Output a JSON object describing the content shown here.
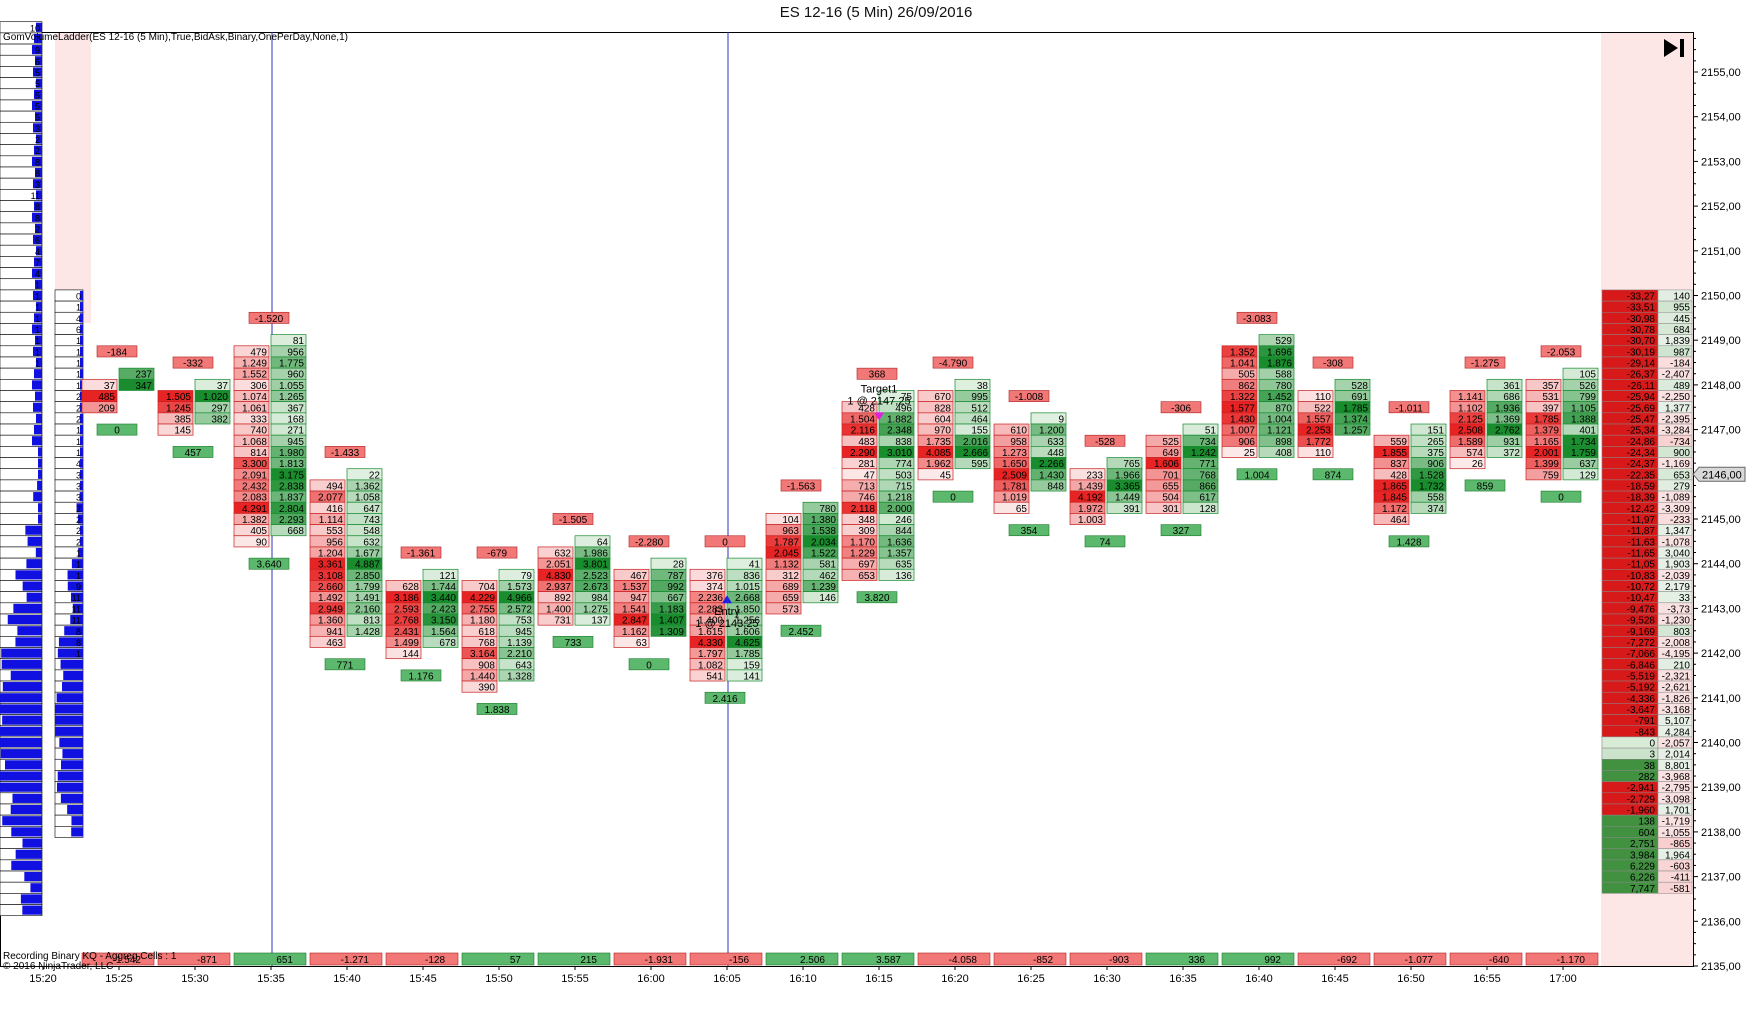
{
  "title": "ES 12-16 (5 Min)  26/09/2016",
  "indicator_label": "GomVolumeLadder(ES 12-16 (5 Min),True,BidAsk,Binary,OnePerDay,None,1)",
  "status_label": "Recording Binary KQ - Aggreg Cells : 1",
  "copyright_label": "© 2016 NinjaTrader, LLC",
  "end_icon": "skip-to-end-icon",
  "current_price_label": "2146,00",
  "colors": {
    "bid": "#e8202a",
    "ask": "#1a9a3a",
    "poc": "#f0a020",
    "highlight": "#38c8e8",
    "profile": "#1010e0",
    "cursor": "#3030c0"
  },
  "chart_data": {
    "type": "footprint",
    "title": "ES 12-16 (5 Min)  26/09/2016",
    "ylim": [
      2135.5,
      2156.5
    ],
    "y_ticks": [
      "2155,00",
      "2154,00",
      "2153,00",
      "2152,00",
      "2151,00",
      "2150,00",
      "2149,00",
      "2148,00",
      "2147,00",
      "2146,00",
      "2145,00",
      "2144,00",
      "2143,00",
      "2142,00",
      "2141,00",
      "2140,00",
      "2139,00",
      "2138,00",
      "2137,00",
      "2136,00",
      "2135,00"
    ],
    "x_ticks": [
      "15:20",
      "15:25",
      "15:30",
      "15:35",
      "15:40",
      "15:45",
      "15:50",
      "15:55",
      "16:00",
      "16:05",
      "16:10",
      "16:15",
      "16:20",
      "16:25",
      "16:30",
      "16:35",
      "16:40",
      "16:45",
      "16:50",
      "16:55",
      "17:00"
    ],
    "bars": [
      {
        "time": "15:25",
        "top": 2148.25,
        "bid": [
          "37",
          "485",
          "209"
        ],
        "ask": [
          "237",
          "347"
        ],
        "high_delta": "-184",
        "low_delta": "0",
        "bottom_delta": "-1.542"
      },
      {
        "time": "15:30",
        "top": 2148.0,
        "bid": [
          "1.505",
          "1.245",
          "385",
          "145"
        ],
        "ask": [
          "37",
          "1.020",
          "297",
          "382"
        ],
        "high_delta": "-332",
        "low_delta": "457",
        "bottom_delta": "-871"
      },
      {
        "time": "15:35",
        "top": 2149.0,
        "bid": [
          "479",
          "1.249",
          "1.552",
          "306",
          "1.074",
          "1.061",
          "333",
          "740",
          "1.068",
          "814",
          "3.300",
          "2.091",
          "2.432",
          "2.083",
          "4.291",
          "1.382",
          "405",
          "90"
        ],
        "ask": [
          "81",
          "956",
          "1.775",
          "960",
          "1.055",
          "1.265",
          "367",
          "168",
          "271",
          "945",
          "1.980",
          "1.813",
          "3.175",
          "2.838",
          "1.837",
          "2.804",
          "2.293",
          "668"
        ],
        "high_delta": "-1.520",
        "low_delta": "3.640",
        "bottom_delta": "651"
      },
      {
        "time": "15:40",
        "top": 2146.0,
        "bid": [
          "494",
          "2.077",
          "416",
          "1.114",
          "553",
          "956",
          "1.204",
          "3.361",
          "3.108",
          "2.660",
          "1.492",
          "2.949",
          "1.360",
          "941",
          "463"
        ],
        "ask": [
          "22",
          "1.362",
          "1.058",
          "647",
          "743",
          "548",
          "632",
          "1.677",
          "4.887",
          "2.850",
          "1.799",
          "1.491",
          "2.160",
          "813",
          "1.428"
        ],
        "high_delta": "-1.433",
        "low_delta": "771",
        "bottom_delta": "-1.271"
      },
      {
        "time": "15:45",
        "top": 2143.75,
        "bid": [
          "628",
          "3.186",
          "2.593",
          "2.768",
          "2.431",
          "1.499",
          "144"
        ],
        "ask": [
          "121",
          "1.744",
          "3.440",
          "2.423",
          "3.150",
          "1.564",
          "678"
        ],
        "high_delta": "-1.361",
        "low_delta": "1.176",
        "bottom_delta": "-128"
      },
      {
        "time": "15:50",
        "top": 2143.75,
        "bid": [
          "704",
          "4.229",
          "2.755",
          "1.180",
          "618",
          "768",
          "3.164",
          "908",
          "1.440",
          "390"
        ],
        "ask": [
          "79",
          "1.573",
          "4.966",
          "2.572",
          "753",
          "945",
          "1.139",
          "2.210",
          "643",
          "1.328"
        ],
        "high_delta": "-679",
        "low_delta": "1.838",
        "bottom_delta": "57"
      },
      {
        "time": "15:55",
        "top": 2144.5,
        "bid": [
          "632",
          "2.051",
          "4.830",
          "2.937",
          "892",
          "1.400",
          "731"
        ],
        "ask": [
          "64",
          "1.986",
          "3.801",
          "2.523",
          "2.673",
          "984",
          "1.275",
          "137"
        ],
        "high_delta": "-1.505",
        "low_delta": "733",
        "bottom_delta": "215"
      },
      {
        "time": "16:00",
        "top": 2144.0,
        "bid": [
          "467",
          "1.537",
          "947",
          "1.541",
          "2.847",
          "1.162",
          "63"
        ],
        "ask": [
          "28",
          "787",
          "992",
          "667",
          "1.183",
          "1.407",
          "1.309"
        ],
        "high_delta": "-2.280",
        "low_delta": "0",
        "bottom_delta": "-1.931"
      },
      {
        "time": "16:05",
        "top": 2144.0,
        "bid": [
          "376",
          "374",
          "2.236",
          "2.283",
          "1.400",
          "1.615",
          "4.330",
          "1.797",
          "1.082",
          "541"
        ],
        "ask": [
          "41",
          "836",
          "1.015",
          "2.668",
          "1.850",
          "1.256",
          "1.606",
          "4.625",
          "1.785",
          "159",
          "141"
        ],
        "high_delta": "0",
        "low_delta": "2.416",
        "bottom_delta": "-156"
      },
      {
        "time": "16:10",
        "top": 2145.25,
        "bid": [
          "104",
          "963",
          "1.787",
          "2.045",
          "1.132",
          "312",
          "689",
          "659",
          "573"
        ],
        "ask": [
          "780",
          "1.380",
          "1.538",
          "2.034",
          "1.522",
          "581",
          "462",
          "1.239",
          "146"
        ],
        "high_delta": "-1.563",
        "low_delta": "2.452",
        "bottom_delta": "2.506"
      },
      {
        "time": "16:15",
        "top": 2147.75,
        "bid": [
          "428",
          "1.504",
          "2.116",
          "483",
          "2.290",
          "281",
          "47",
          "713",
          "746",
          "2.118",
          "348",
          "309",
          "1.170",
          "1.229",
          "697",
          "653"
        ],
        "ask": [
          "75",
          "496",
          "1.882",
          "2.348",
          "838",
          "3.010",
          "774",
          "503",
          "715",
          "1.218",
          "2.000",
          "246",
          "844",
          "1.636",
          "1.357",
          "635",
          "136"
        ],
        "high_delta": "368",
        "low_delta": "3.820",
        "bottom_delta": "3.587"
      },
      {
        "time": "16:20",
        "top": 2148.0,
        "bid": [
          "670",
          "828",
          "604",
          "970",
          "1.735",
          "4.085",
          "1.962",
          "45"
        ],
        "ask": [
          "38",
          "995",
          "512",
          "464",
          "155",
          "2.016",
          "2.666",
          "595"
        ],
        "high_delta": "-4.790",
        "low_delta": "0",
        "bottom_delta": "-4.058"
      },
      {
        "time": "16:25",
        "top": 2147.25,
        "bid": [
          "610",
          "958",
          "1.273",
          "1.650",
          "2.509",
          "1.781",
          "1.019",
          "65"
        ],
        "ask": [
          "9",
          "1.200",
          "633",
          "448",
          "2.266",
          "1.430",
          "848"
        ],
        "high_delta": "-1.008",
        "low_delta": "354",
        "bottom_delta": "-852"
      },
      {
        "time": "16:30",
        "top": 2146.25,
        "bid": [
          "233",
          "1.439",
          "4.192",
          "1.972",
          "1.003"
        ],
        "ask": [
          "765",
          "1.966",
          "3.365",
          "1.449",
          "391"
        ],
        "high_delta": "-528",
        "low_delta": "74",
        "bottom_delta": "-903"
      },
      {
        "time": "16:35",
        "top": 2147.0,
        "bid": [
          "525",
          "649",
          "1.606",
          "701",
          "655",
          "504",
          "301"
        ],
        "ask": [
          "51",
          "734",
          "1.242",
          "771",
          "768",
          "866",
          "617",
          "128"
        ],
        "high_delta": "-306",
        "low_delta": "327",
        "bottom_delta": "336"
      },
      {
        "time": "16:40",
        "top": 2149.0,
        "bid": [
          "1.352",
          "1.041",
          "505",
          "862",
          "1.322",
          "1.577",
          "1.430",
          "1.007",
          "906",
          "25"
        ],
        "ask": [
          "529",
          "1.696",
          "1.876",
          "588",
          "780",
          "1.452",
          "870",
          "1.004",
          "1.121",
          "898",
          "408"
        ],
        "high_delta": "-3.083",
        "low_delta": "1.004",
        "bottom_delta": "992"
      },
      {
        "time": "16:45",
        "top": 2148.0,
        "bid": [
          "110",
          "522",
          "1.557",
          "2.253",
          "1.772",
          "110"
        ],
        "ask": [
          "528",
          "691",
          "1.785",
          "1.374",
          "1.257"
        ],
        "high_delta": "-308",
        "low_delta": "874",
        "bottom_delta": "-692"
      },
      {
        "time": "16:50",
        "top": 2147.0,
        "bid": [
          "559",
          "1.855",
          "837",
          "428",
          "1.865",
          "1.845",
          "1.172",
          "464"
        ],
        "ask": [
          "151",
          "265",
          "375",
          "906",
          "1.528",
          "1.732",
          "558",
          "374"
        ],
        "high_delta": "-1.011",
        "low_delta": "1.428",
        "bottom_delta": "-1.077"
      },
      {
        "time": "16:55",
        "top": 2148.0,
        "bid": [
          "1.141",
          "1.102",
          "2.125",
          "2.508",
          "1.589",
          "574",
          "26"
        ],
        "ask": [
          "361",
          "686",
          "1.936",
          "1.369",
          "2.762",
          "931",
          "372"
        ],
        "high_delta": "-1.275",
        "low_delta": "859",
        "bottom_delta": "-640"
      },
      {
        "time": "17:00",
        "top": 2148.25,
        "bid": [
          "357",
          "531",
          "397",
          "1.785",
          "1.379",
          "1.165",
          "2.001",
          "1.399",
          "759"
        ],
        "ask": [
          "105",
          "526",
          "799",
          "1.105",
          "1.388",
          "401",
          "1.734",
          "1.759",
          "637",
          "129"
        ],
        "high_delta": "-2.053",
        "low_delta": "0",
        "bottom_delta": "-1.170"
      }
    ],
    "ladder_top": 2150.0,
    "ladder_delta": [
      "-33,27",
      "-33,51",
      "-30,98",
      "-30,78",
      "-30,70",
      "-30,19",
      "-29,14",
      "-26,37",
      "-26,11",
      "-25,94",
      "-25,69",
      "-25,47",
      "-25,34",
      "-24,86",
      "-24,34",
      "-24,37",
      "-22,35",
      "-18,59",
      "-18,39",
      "-12,42",
      "-11,97",
      "-11,87",
      "-11,63",
      "-11,65",
      "-11,05",
      "-10,83",
      "-10,72",
      "-10,47",
      "-9,476",
      "-9,528",
      "-9,169",
      "-7,272",
      "-7,066",
      "-6,846",
      "-5,519",
      "-5,192",
      "-4,336",
      "-3,647",
      "-791",
      "-843",
      "0",
      "3",
      "38",
      "282",
      "-2,941",
      "-2,729",
      "-1,960",
      "138",
      "604",
      "2,751",
      "3,984",
      "6,229",
      "6,226",
      "7,747"
    ],
    "ladder_volume": [
      "140",
      "955",
      "445",
      "684",
      "1,839",
      "987",
      "-184",
      "-2,407",
      "489",
      "-2,250",
      "1,377",
      "-2,395",
      "-3,284",
      "-734",
      "900",
      "-1,169",
      "653",
      "279",
      "-1,089",
      "-3,309",
      "-233",
      "1,347",
      "-1,078",
      "3,040",
      "1,903",
      "-2,039",
      "2,179",
      "33",
      "-3,73",
      "-1,230",
      "803",
      "-2,008",
      "-4,195",
      "210",
      "-2,321",
      "-2,621",
      "-1,826",
      "-3,168",
      "5,107",
      "4,284",
      "-2,057",
      "2,014",
      "8,801",
      "-3,968",
      "-2,795",
      "-3,098",
      "1,701",
      "-1,719",
      "-1,055",
      "-865",
      "1,964",
      "-603",
      "-411",
      "-581"
    ],
    "profile_left": [
      "10",
      "7",
      "9",
      "6",
      "5",
      "5",
      "5",
      "5",
      "5",
      "3",
      "2",
      "2",
      "8",
      "8",
      "3",
      "11",
      "8",
      "8",
      "2",
      "6",
      "4",
      "7",
      "4",
      "1",
      "1",
      "1",
      "1",
      "1",
      "1",
      "1",
      "1"
    ],
    "profile_right": [
      "0",
      "1",
      "4",
      "6",
      "1",
      "1",
      "1",
      "1",
      "1",
      "2",
      "2",
      "2",
      "1",
      "1",
      "1",
      "4",
      "3",
      "3",
      "3",
      "2",
      "2",
      "2",
      "2",
      "1",
      "1",
      "1",
      "9",
      "11",
      "11",
      "11",
      "8",
      "8",
      "1"
    ],
    "markers": [
      {
        "label": "Target1",
        "sublabel": "1 @ 2147,25",
        "price": 2147.25,
        "time": "16:15"
      },
      {
        "label": "Entry",
        "sublabel": "1 @ 2143,25",
        "price": 2143.25,
        "time": "16:05"
      }
    ],
    "cursor_times": [
      "15:35",
      "16:05"
    ]
  }
}
